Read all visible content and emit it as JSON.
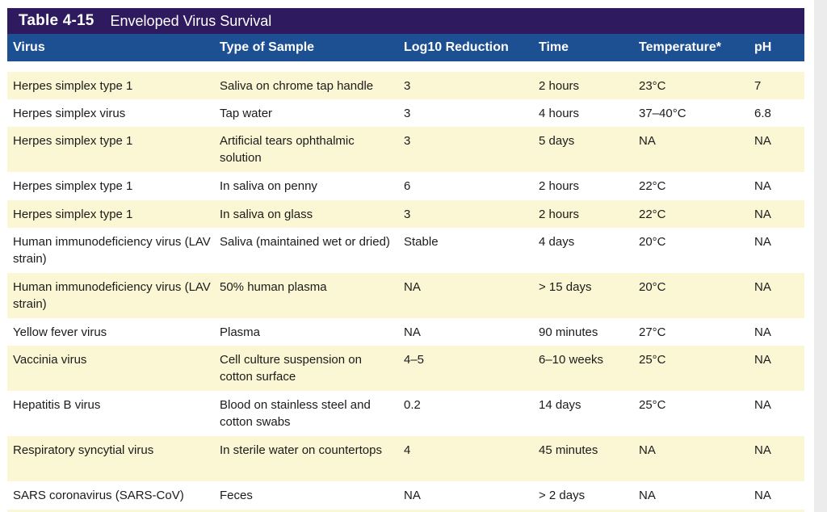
{
  "table": {
    "number": "Table 4-15",
    "title": "Enveloped Virus Survival",
    "columns": [
      "Virus",
      "Type of Sample",
      "Log10 Reduction",
      "Time",
      "Temperature*",
      "pH"
    ],
    "rows": [
      {
        "virus": "Herpes simplex type 1",
        "sample": "Saliva on chrome tap handle",
        "log": "3",
        "time": "2 hours",
        "temp": "23°C",
        "ph": "7"
      },
      {
        "virus": "Herpes simplex virus",
        "sample": "Tap water",
        "log": "3",
        "time": "4 hours",
        "temp": "37–40°C",
        "ph": "6.8"
      },
      {
        "virus": "Herpes simplex type 1",
        "sample": "Artificial tears ophthalmic solution",
        "log": "3",
        "time": "5 days",
        "temp": "NA",
        "ph": "NA"
      },
      {
        "virus": "Herpes simplex type 1",
        "sample": "In saliva on penny",
        "log": "6",
        "time": "2 hours",
        "temp": "22°C",
        "ph": "NA"
      },
      {
        "virus": "Herpes simplex type 1",
        "sample": "In saliva on glass",
        "log": "3",
        "time": "2 hours",
        "temp": "22°C",
        "ph": "NA"
      },
      {
        "virus": "Human immunodeficiency virus (LAV strain)",
        "sample": "Saliva (maintained wet or dried)",
        "log": "Stable",
        "time": "4 days",
        "temp": "20°C",
        "ph": "NA"
      },
      {
        "virus": "Human immunodeficiency virus (LAV strain)",
        "sample": "50% human plasma",
        "log": "NA",
        "time": "> 15 days",
        "temp": "20°C",
        "ph": "NA"
      },
      {
        "virus": "Yellow fever virus",
        "sample": "Plasma",
        "log": "NA",
        "time": "90 minutes",
        "temp": "27°C",
        "ph": "NA"
      },
      {
        "virus": "Vaccinia virus",
        "sample": "Cell culture suspension on cotton surface",
        "log": "4–5",
        "time": "6–10 weeks",
        "temp": "25°C",
        "ph": "NA"
      },
      {
        "virus": "Hepatitis B virus",
        "sample": "Blood on stainless steel and cotton swabs",
        "log": "0.2",
        "time": "14 days",
        "temp": "25°C",
        "ph": "NA"
      },
      {
        "virus": "Respiratory syncytial virus",
        "sample": "In sterile water on countertops",
        "log": "4",
        "time": "45 minutes",
        "temp": "NA",
        "ph": "NA"
      },
      {
        "virus": "SARS coronavirus (SARS-CoV)",
        "sample": "Feces",
        "log": "NA",
        "time": "> 2 days",
        "temp": "NA",
        "ph": "NA"
      }
    ]
  }
}
